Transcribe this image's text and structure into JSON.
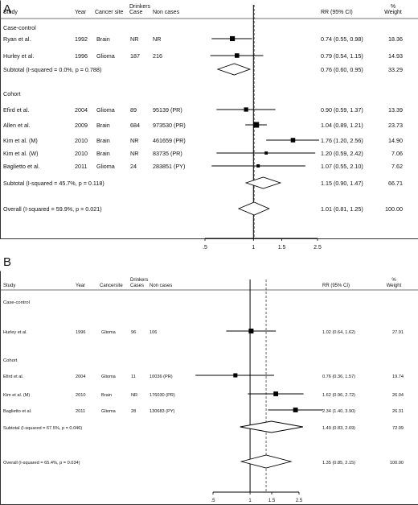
{
  "chart_data": [
    {
      "type": "forest",
      "panel": "A",
      "columns": [
        "Study",
        "Year",
        "Cancer site",
        "Drinkers Case",
        "Non cases",
        "RR (95% CI)",
        "% Weight"
      ],
      "scale": "log",
      "xticks": [
        ".5",
        "1",
        "1.5",
        "2.5"
      ],
      "null_line": 1,
      "overall_line": 1.01,
      "rows": [
        {
          "kind": "section",
          "label": "Case-control"
        },
        {
          "kind": "study",
          "study": "Ryan et al.",
          "year": "1992",
          "site": "Brain",
          "cases": "NR",
          "noncases": "NR",
          "rr": 0.74,
          "lo": 0.55,
          "hi": 0.98,
          "rr_text": "0.74 (0.55, 0.98)",
          "weight": "18.36"
        },
        {
          "kind": "study",
          "study": "Hurley et al.",
          "year": "1996",
          "site": "Glioma",
          "cases": "187",
          "noncases": "216",
          "rr": 0.79,
          "lo": 0.54,
          "hi": 1.15,
          "rr_text": "0.79 (0.54, 1.15)",
          "weight": "14.93"
        },
        {
          "kind": "subtotal",
          "label": "Subtotal  (I-squared = 0.0%, p = 0.788)",
          "rr": 0.76,
          "lo": 0.6,
          "hi": 0.95,
          "rr_text": "0.76 (0.60, 0.95)",
          "weight": "33.29"
        },
        {
          "kind": "section",
          "label": "Cohort"
        },
        {
          "kind": "study",
          "study": "Efird et al.",
          "year": "2004",
          "site": "Glioma",
          "cases": "89",
          "noncases": "95139 (PR)",
          "rr": 0.9,
          "lo": 0.59,
          "hi": 1.37,
          "rr_text": "0.90 (0.59, 1.37)",
          "weight": "13.39"
        },
        {
          "kind": "study",
          "study": "Allen et al.",
          "year": "2009",
          "site": "Brain",
          "cases": "684",
          "noncases": "973530 (PR)",
          "rr": 1.04,
          "lo": 0.89,
          "hi": 1.21,
          "rr_text": "1.04 (0.89, 1.21)",
          "weight": "23.73"
        },
        {
          "kind": "study",
          "study": "Kim et al. (M)",
          "year": "2010",
          "site": "Brain",
          "cases": "NR",
          "noncases": "461659 (PR)",
          "rr": 1.76,
          "lo": 1.2,
          "hi": 2.56,
          "rr_text": "1.76 (1.20, 2.56)",
          "weight": "14.90"
        },
        {
          "kind": "study",
          "study": "Kim et al. (W)",
          "year": "2010",
          "site": "Brain",
          "cases": "NR",
          "noncases": "83735 (PR)",
          "rr": 1.2,
          "lo": 0.59,
          "hi": 2.42,
          "rr_text": "1.20 (0.59, 2.42)",
          "weight": "7.06"
        },
        {
          "kind": "study",
          "study": "Baglietto et al.",
          "year": "2011",
          "site": "Glioma",
          "cases": "24",
          "noncases": "283851 (PY)",
          "rr": 1.07,
          "lo": 0.55,
          "hi": 2.1,
          "rr_text": "1.07 (0.55, 2.10)",
          "weight": "7.62"
        },
        {
          "kind": "subtotal",
          "label": "Subtotal  (I-squared = 45.7%, p = 0.118)",
          "rr": 1.15,
          "lo": 0.9,
          "hi": 1.47,
          "rr_text": "1.15 (0.90, 1.47)",
          "weight": "66.71"
        },
        {
          "kind": "overall",
          "label": "Overall  (I-squared = 59.9%, p = 0.021)",
          "rr": 1.01,
          "lo": 0.81,
          "hi": 1.25,
          "rr_text": "1.01 (0.81, 1.25)",
          "weight": "100.00"
        }
      ]
    },
    {
      "type": "forest",
      "panel": "B",
      "columns": [
        "Study",
        "Year",
        "Cancersite",
        "Drinkers Cases",
        "Non cases",
        "RR (95% CI)",
        "% Weight"
      ],
      "scale": "log",
      "xticks": [
        ".5",
        "1",
        "1.5",
        "2.5"
      ],
      "null_line": 1,
      "overall_line": 1.35,
      "rows": [
        {
          "kind": "section",
          "label": "Case-control"
        },
        {
          "kind": "study",
          "study": "Hurley et al.",
          "year": "1996",
          "site": "Glioma",
          "cases": "96",
          "noncases": "106",
          "rr": 1.02,
          "lo": 0.64,
          "hi": 1.62,
          "rr_text": "1.02 (0.64, 1.62)",
          "weight": "27.91"
        },
        {
          "kind": "section",
          "label": "Cohort"
        },
        {
          "kind": "study",
          "study": "Efird et al.",
          "year": "2004",
          "site": "Glioma",
          "cases": "11",
          "noncases": "10036 (PR)",
          "rr": 0.76,
          "lo": 0.36,
          "hi": 1.57,
          "rr_text": "0.76 (0.36, 1.57)",
          "weight": "19.74"
        },
        {
          "kind": "study",
          "study": "Kim et al. (M)",
          "year": "2010",
          "site": "Brain",
          "cases": "NR",
          "noncases": "176030 (PR)",
          "rr": 1.62,
          "lo": 0.96,
          "hi": 2.72,
          "rr_text": "1.62 (0.96, 2.72)",
          "weight": "26.04"
        },
        {
          "kind": "study",
          "study": "Baglietto et al.",
          "year": "2011",
          "site": "Glioma",
          "cases": "28",
          "noncases": "130683 (PY)",
          "rr": 2.34,
          "lo": 1.4,
          "hi": 3.9,
          "rr_text": "2.34 (1.40, 3.90)",
          "weight": "26.31"
        },
        {
          "kind": "subtotal",
          "label": "Subtotal  (I-squared = 67.5%, p = 0.046)",
          "rr": 1.49,
          "lo": 0.83,
          "hi": 2.69,
          "rr_text": "1.49 (0.83, 2.69)",
          "weight": "72.09"
        },
        {
          "kind": "overall",
          "label": "Overall  (I-squared = 65.4%, p = 0.034)",
          "rr": 1.35,
          "lo": 0.85,
          "hi": 2.15,
          "rr_text": "1.35 (0.85, 2.15)",
          "weight": "100.00"
        }
      ]
    }
  ]
}
